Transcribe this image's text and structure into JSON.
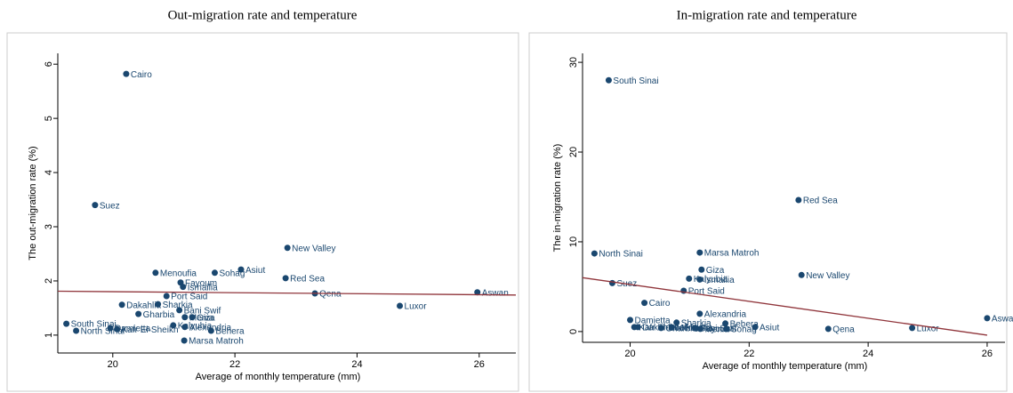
{
  "chart_data": [
    {
      "type": "scatter",
      "title": "Out-migration rate and temperature",
      "x_label": "Average of monthly temperature (mm)",
      "y_label": "The out-migration rate (%)",
      "color": "#1a476f",
      "point_labels": [
        "Cairo",
        "Suez",
        "New Valley",
        "Asiut",
        "Menoufia",
        "Sohag",
        "Red Sea",
        "Fayoum",
        "Ismailia",
        "Qena",
        "Aswan",
        "Port Said",
        "Luxor",
        "Dakahlia",
        "Sharkia",
        "Bani Swif",
        "Gharbia",
        "Giza",
        "Menia",
        "Kalyubia",
        "Alexandria",
        "Behera",
        "South Sinai",
        "North Sinai",
        "Damietta",
        "Kafr El-Sheikh",
        "Marsa Matroh"
      ],
      "x": [
        20.22,
        19.71,
        22.86,
        22.1,
        20.7,
        21.67,
        22.83,
        21.11,
        21.15,
        23.31,
        25.97,
        20.88,
        24.7,
        20.15,
        20.74,
        21.09,
        20.42,
        21.3,
        21.18,
        20.99,
        21.18,
        21.61,
        19.24,
        19.4,
        19.96,
        20.07,
        21.17
      ],
      "values": [
        5.82,
        3.4,
        2.61,
        2.21,
        2.15,
        2.15,
        2.05,
        1.97,
        1.89,
        1.77,
        1.79,
        1.72,
        1.54,
        1.56,
        1.57,
        1.46,
        1.39,
        1.33,
        1.33,
        1.18,
        1.15,
        1.08,
        1.21,
        1.08,
        1.13,
        1.11,
        0.9
      ],
      "fit_line": {
        "x": [
          19.1,
          26.6
        ],
        "values": [
          1.81,
          1.74
        ],
        "color": "#90353b"
      },
      "xlim": [
        19.1,
        26.6
      ],
      "ylim": [
        0.67,
        6.2
      ],
      "xticks": [
        20,
        22,
        24,
        26
      ],
      "yticks": [
        1,
        2,
        3,
        4,
        5,
        6
      ]
    },
    {
      "type": "scatter",
      "title": "In-migration rate and temperature",
      "x_label": "Average of monthly temperature (mm)",
      "y_label": "The in-migration rate (%)",
      "color": "#1a476f",
      "point_labels": [
        "South Sinai",
        "Red Sea",
        "North Sinai",
        "Marsa Matroh",
        "Giza",
        "New Valley",
        "Kalyubia",
        "Ismailia",
        "Suez",
        "Port Said",
        "Cairo",
        "Alexandria",
        "Damietta",
        "Aswan",
        "Sharkia",
        "Behera",
        "Dakahlia",
        "Gharbia",
        "Menoufia",
        "Bani Swif",
        "Fayoum",
        "Menia",
        "Sohag",
        "Asiut",
        "Kafr El-Sheikh",
        "Qena",
        "Luxor"
      ],
      "x": [
        19.64,
        22.83,
        19.4,
        21.17,
        21.2,
        22.88,
        20.99,
        21.17,
        19.7,
        20.9,
        20.24,
        21.17,
        20.0,
        26.0,
        20.78,
        21.6,
        20.13,
        20.52,
        20.7,
        21.09,
        21.11,
        21.18,
        21.62,
        22.1,
        20.07,
        23.33,
        24.74
      ],
      "values": [
        28.0,
        14.65,
        8.7,
        8.8,
        6.9,
        6.3,
        5.9,
        5.8,
        5.4,
        4.55,
        3.2,
        1.98,
        1.29,
        1.49,
        1.0,
        0.9,
        0.5,
        0.4,
        0.45,
        0.4,
        0.35,
        0.3,
        0.3,
        0.5,
        0.5,
        0.3,
        0.4
      ],
      "fit_line": {
        "x": [
          19.2,
          26.0
        ],
        "values": [
          6.0,
          -0.4
        ],
        "color": "#90353b"
      },
      "xlim": [
        19.2,
        26.3
      ],
      "ylim": [
        -1.2,
        31
      ],
      "xticks": [
        20,
        22,
        24,
        26
      ],
      "yticks": [
        0,
        10,
        20,
        30
      ]
    }
  ]
}
